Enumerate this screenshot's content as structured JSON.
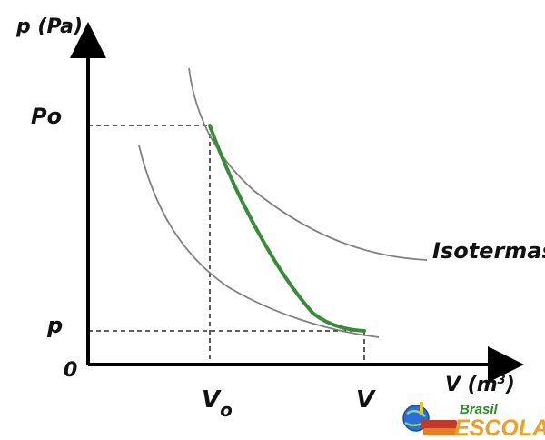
{
  "axes": {
    "y_label": "p (Pa)",
    "x_label_base": "V (m",
    "x_label_sup": "3",
    "x_label_end": ")",
    "origin": "0"
  },
  "ticks": {
    "p0": "Po",
    "p": "p",
    "v0_base": "V",
    "v0_sub": "o",
    "v": "V"
  },
  "annotations": {
    "isotherms": "Isotermas"
  },
  "logo": {
    "line1": "Brasil",
    "line2": "ESCOLA"
  },
  "colors": {
    "axis": "#000000",
    "isotherm": "#808080",
    "adiabatic": "#3a8a3a",
    "dashed": "#000000"
  }
}
